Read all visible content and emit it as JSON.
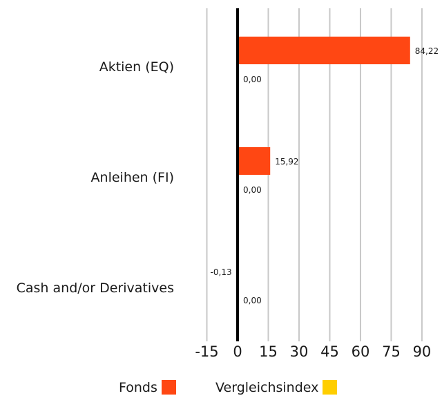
{
  "chart_data": {
    "type": "bar",
    "orientation": "horizontal",
    "categories": [
      "Aktien (EQ)",
      "Anleihen (FI)",
      "Cash and/or Derivatives"
    ],
    "series": [
      {
        "name": "Fonds",
        "values": [
          84.22,
          15.92,
          -0.13
        ],
        "labels": [
          "84,22",
          "15,92",
          "-0,13"
        ],
        "color": "#ff4713"
      },
      {
        "name": "Vergleichsindex",
        "values": [
          0.0,
          0.0,
          0.0
        ],
        "labels": [
          "0,00",
          "0,00",
          "0,00"
        ],
        "color": "#ffce00"
      }
    ],
    "xticks": [
      -15,
      0,
      15,
      30,
      45,
      60,
      75,
      90
    ],
    "xlim": [
      -15,
      90
    ],
    "grid": true,
    "legend_position": "bottom"
  }
}
